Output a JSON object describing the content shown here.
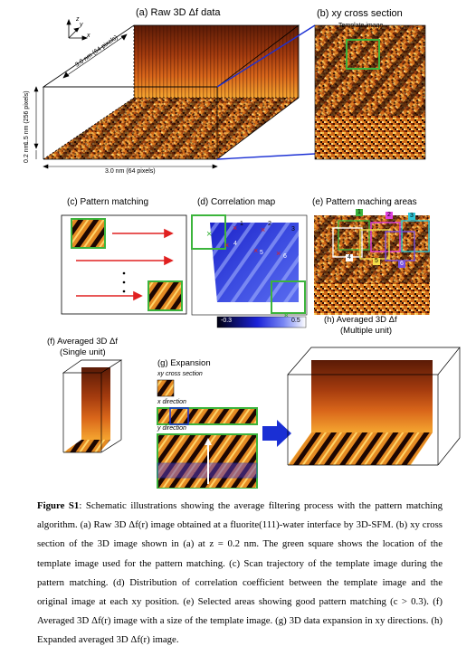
{
  "panels": {
    "a": {
      "title": "(a) Raw 3D Δf data",
      "dim_x": "3.0 nm (64 pixels)",
      "dim_y": "3.0 nm (64 pixels)",
      "dim_z": "1.5 nm (256 pixels)",
      "z0": "0.2 nm"
    },
    "b": {
      "title": "(b) xy cross section",
      "template_label": "Template image"
    },
    "c": {
      "title": "(c) Pattern matching"
    },
    "d": {
      "title": "(d) Correlation map",
      "numbers": [
        "1",
        "2",
        "3",
        "4",
        "5",
        "6"
      ],
      "colorbar_min": "-0.3",
      "colorbar_max": "0.5"
    },
    "e": {
      "title": "(e) Pattern maching areas",
      "numbers": [
        "1",
        "2",
        "3",
        "4",
        "5",
        "6"
      ]
    },
    "f": {
      "title_line1": "(f) Averaged 3D Δf",
      "title_line2": "(Single unit)"
    },
    "g": {
      "title_line1": "(g) Expansion",
      "sub1": "xy cross section",
      "sub2": "x direction",
      "sub3": "y direction"
    },
    "h": {
      "title_line1": "(h) Averaged 3D Δf",
      "title_line2": "(Multiple unit)"
    }
  },
  "axes": {
    "z": "z",
    "y": "y",
    "x": "x"
  },
  "colors": {
    "green": "#3cb43c",
    "red": "#e02020",
    "blue": "#1a2fd4",
    "dark": "#4a1a05",
    "orange": "#f08a1a"
  },
  "caption": {
    "label": "Figure S1",
    "text": ": Schematic illustrations showing the average filtering process with the pattern matching algorithm. (a) Raw 3D Δf(r) image obtained at a fluorite(111)-water interface by 3D-SFM. (b) xy cross section of the 3D image shown in (a) at z = 0.2 nm. The green square shows the location of the template image used for the pattern matching. (c) Scan trajectory of the template image during the pattern matching. (d) Distribution of correlation coefficient between the template image and the original image at each xy position. (e) Selected areas showing good pattern matching (c > 0.3). (f) Averaged 3D Δf(r) image with a size of the template image. (g) 3D data expansion in xy directions. (h) Expanded averaged 3D Δf(r) image."
  }
}
